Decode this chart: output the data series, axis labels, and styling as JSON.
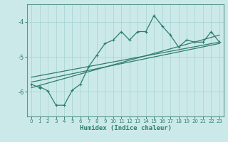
{
  "xlabel": "Humidex (Indice chaleur)",
  "bg_color": "#cce9e9",
  "grid_color": "#aad5d5",
  "line_color": "#2d7d6e",
  "spine_color": "#5a9a8a",
  "xlim": [
    -0.5,
    23.5
  ],
  "ylim": [
    -6.7,
    -3.5
  ],
  "yticks": [
    -6,
    -5,
    -4
  ],
  "xticks": [
    0,
    1,
    2,
    3,
    4,
    5,
    6,
    7,
    8,
    9,
    10,
    11,
    12,
    13,
    14,
    15,
    16,
    17,
    18,
    19,
    20,
    21,
    22,
    23
  ],
  "line1": [
    null,
    -5.85,
    -5.97,
    -6.38,
    -6.38,
    -5.95,
    -5.78,
    -5.28,
    -4.95,
    -4.62,
    -4.52,
    -4.28,
    -4.52,
    -4.28,
    -4.28,
    -3.82,
    -4.12,
    -4.38,
    -4.72,
    -4.52,
    -4.58,
    -4.58,
    -4.28,
    -4.58
  ],
  "line2_x": [
    0,
    23
  ],
  "line2_y": [
    -5.72,
    -4.62
  ],
  "line3_x": [
    0,
    23
  ],
  "line3_y": [
    -5.58,
    -4.58
  ],
  "line4_x": [
    0,
    23
  ],
  "line4_y": [
    -5.88,
    -4.38
  ],
  "line0_x": [
    0,
    1
  ],
  "line0_y": [
    -5.78,
    -5.88
  ]
}
